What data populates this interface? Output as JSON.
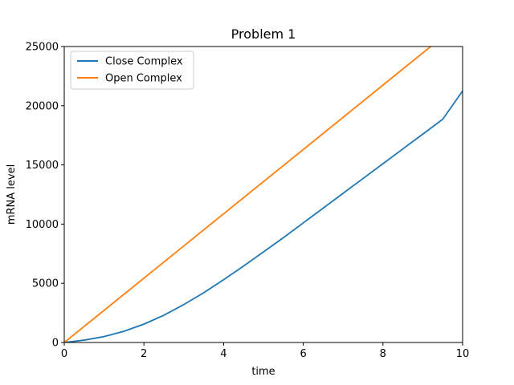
{
  "chart_data": {
    "type": "line",
    "title": "Problem 1",
    "xlabel": "time",
    "ylabel": "mRNA level",
    "xlim": [
      0,
      10
    ],
    "ylim": [
      0,
      25000
    ],
    "x_ticks": [
      0,
      2,
      4,
      6,
      8,
      10
    ],
    "y_ticks": [
      0,
      5000,
      10000,
      15000,
      20000,
      25000
    ],
    "x_tick_labels": [
      "0",
      "2",
      "4",
      "6",
      "8",
      "10"
    ],
    "y_tick_labels": [
      "0",
      "5000",
      "10000",
      "15000",
      "20000",
      "25000"
    ],
    "grid": false,
    "legend_position": "top-left",
    "series": [
      {
        "name": "Close Complex",
        "color": "#1f77b4",
        "x": [
          0,
          0.5,
          1,
          1.5,
          2,
          2.5,
          3,
          3.5,
          4,
          4.5,
          5,
          5.5,
          6,
          6.5,
          7,
          7.5,
          8,
          8.5,
          9,
          9.5,
          10
        ],
        "y": [
          0,
          200,
          500,
          950,
          1550,
          2300,
          3200,
          4200,
          5300,
          6450,
          7650,
          8850,
          10100,
          11350,
          12600,
          13850,
          15100,
          16350,
          17600,
          18850,
          21250
        ]
      },
      {
        "name": "Open Complex",
        "color": "#ff7f0e",
        "x": [
          0,
          2,
          4,
          6,
          8,
          9.2
        ],
        "y": [
          0,
          5430,
          10870,
          16300,
          21740,
          25000
        ]
      }
    ]
  }
}
